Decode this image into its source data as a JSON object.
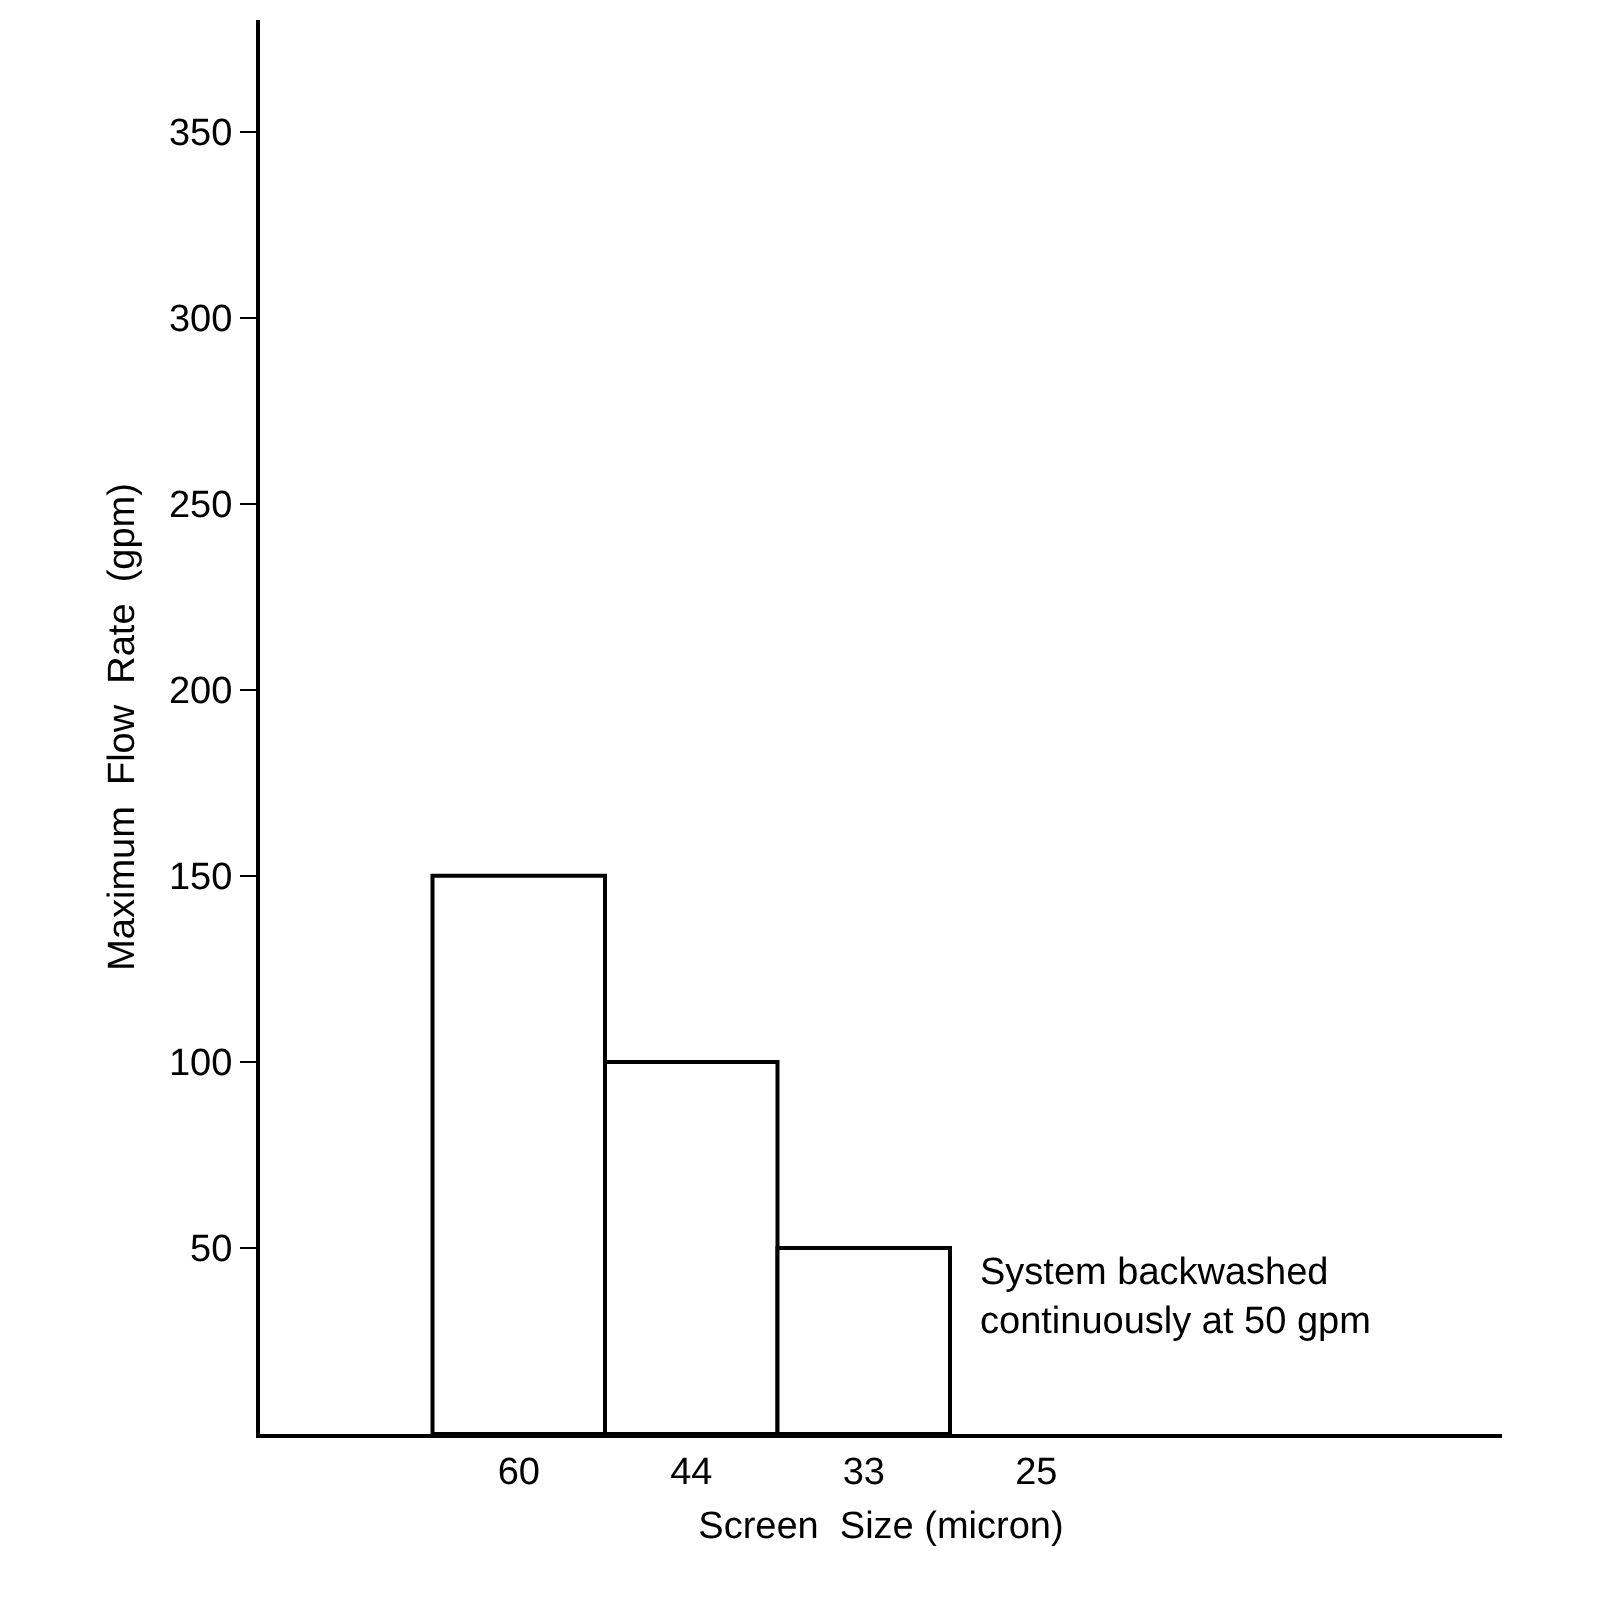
{
  "chart_data": {
    "type": "bar",
    "xlabel": "Screen  Size (micron)",
    "ylabel": "Maximum  Flow  Rate  (gpm)",
    "categories": [
      "60",
      "44",
      "33",
      "25"
    ],
    "values": [
      150,
      100,
      50,
      null
    ],
    "color": "#ffffff",
    "ylim": [
      0,
      380
    ],
    "yticks": [
      50,
      100,
      150,
      200,
      250,
      300,
      350
    ],
    "grid": false,
    "annotations": [
      "System backwashed\ncontinuously at 50 gpm"
    ]
  }
}
